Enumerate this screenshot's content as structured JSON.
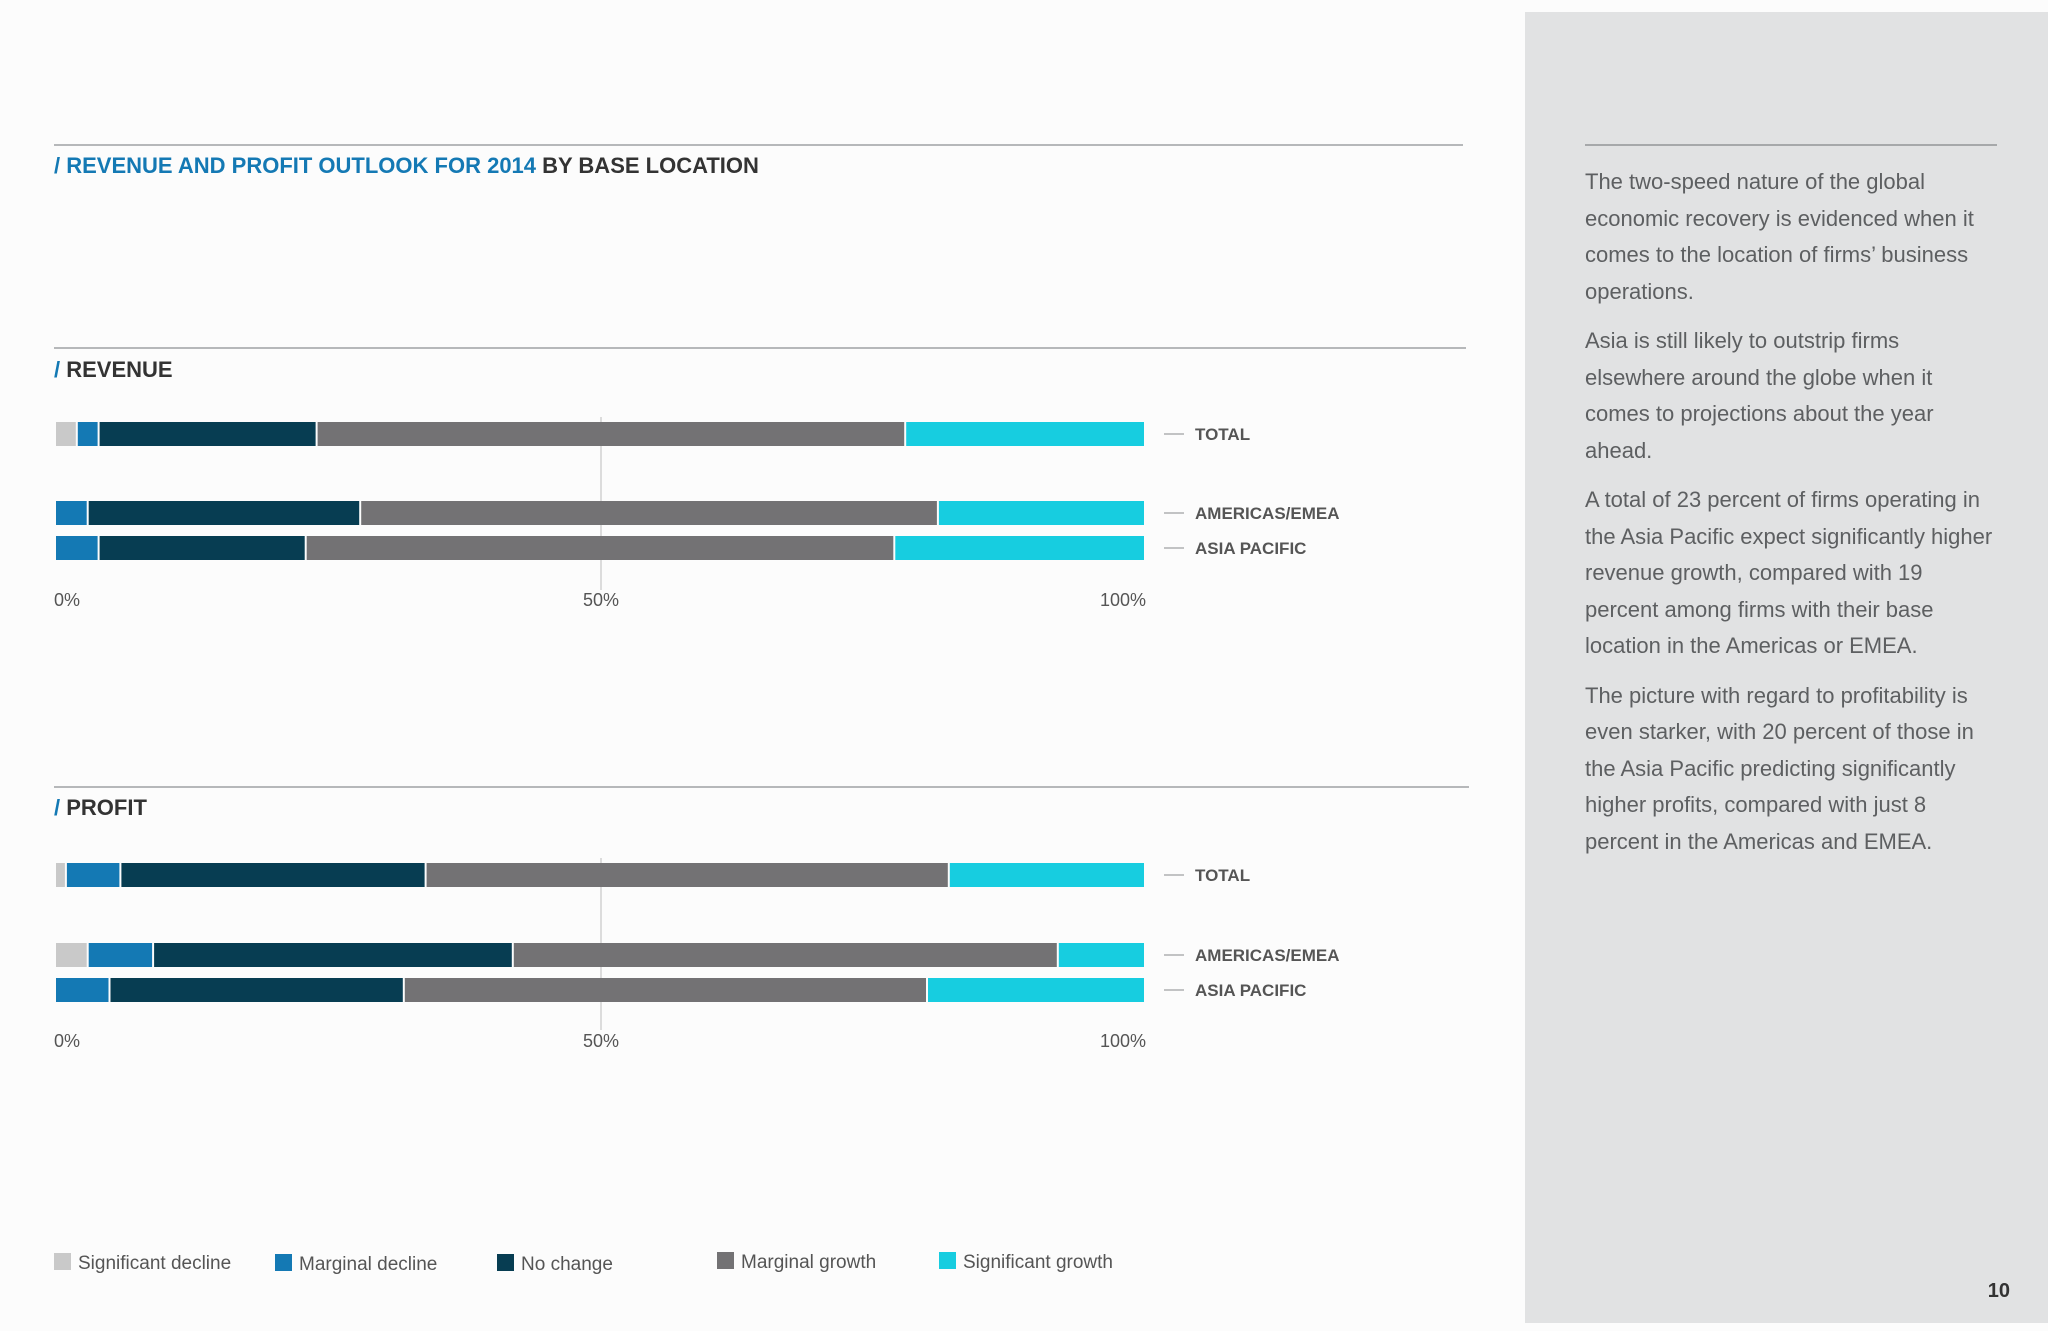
{
  "page": {
    "title_colored": "/ REVENUE AND PROFIT OUTLOOK FOR 2014",
    "title_rest": " BY BASE LOCATION",
    "page_number": "10",
    "colors": {
      "accent": "#1479b4",
      "significant_decline": "#c9c9c9",
      "marginal_decline": "#1479b4",
      "no_change": "#073d52",
      "marginal_growth": "#737274",
      "significant_growth": "#17cde0"
    }
  },
  "sidebar": {
    "paragraphs": [
      "The two-speed nature of the global economic recovery is evidenced when it comes to the location of firms’ business operations.",
      "Asia is still likely to outstrip firms elsewhere around the globe when it comes to projections about the year ahead.",
      "A total of 23 percent of firms operating in the Asia Pacific expect significantly higher revenue growth, compared with 19 percent among firms with their base location in the Americas or EMEA.",
      "The picture with regard to profitability is even starker, with 20 percent of those in the Asia Pacific predicting significantly higher profits, compared with just 8 percent in the Americas and EMEA."
    ]
  },
  "chart_data": [
    {
      "type": "stacked-bar-horizontal",
      "title": "/ REVENUE",
      "xlim": [
        0,
        100
      ],
      "x_ticks": [
        "0%",
        "50%",
        "100%"
      ],
      "categories": [
        "TOTAL",
        "AMERICAS/EMEA",
        "ASIA PACIFIC"
      ],
      "series": [
        {
          "name": "Significant decline",
          "values": [
            2,
            0,
            0
          ]
        },
        {
          "name": "Marginal decline",
          "values": [
            2,
            3,
            4
          ]
        },
        {
          "name": "No change",
          "values": [
            20,
            25,
            19
          ]
        },
        {
          "name": "Marginal growth",
          "values": [
            54,
            53,
            54
          ]
        },
        {
          "name": "Significant growth",
          "values": [
            22,
            19,
            23
          ]
        }
      ]
    },
    {
      "type": "stacked-bar-horizontal",
      "title": "/ PROFIT",
      "xlim": [
        0,
        100
      ],
      "x_ticks": [
        "0%",
        "50%",
        "100%"
      ],
      "categories": [
        "TOTAL",
        "AMERICAS/EMEA",
        "ASIA PACIFIC"
      ],
      "series": [
        {
          "name": "Significant decline",
          "values": [
            1,
            3,
            0
          ]
        },
        {
          "name": "Marginal decline",
          "values": [
            5,
            6,
            5
          ]
        },
        {
          "name": "No change",
          "values": [
            28,
            33,
            27
          ]
        },
        {
          "name": "Marginal growth",
          "values": [
            48,
            50,
            48
          ]
        },
        {
          "name": "Significant growth",
          "values": [
            18,
            8,
            20
          ]
        }
      ]
    }
  ]
}
